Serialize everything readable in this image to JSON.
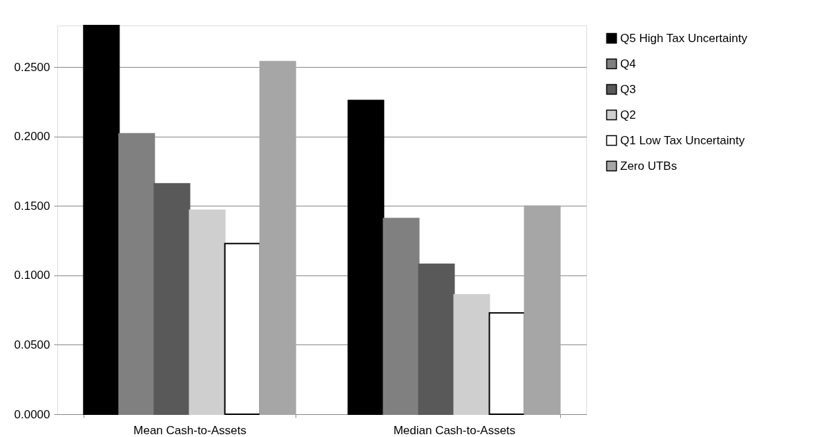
{
  "chart_data": {
    "type": "bar",
    "categories": [
      "Mean Cash-to-Assets",
      "Median Cash-to-Assets"
    ],
    "series": [
      {
        "name": "Q5 High Tax Uncertainty",
        "color": "#000000",
        "values": [
          0.28,
          0.226
        ]
      },
      {
        "name": "Q4",
        "color": "#808080",
        "values": [
          0.202,
          0.141
        ]
      },
      {
        "name": "Q3",
        "color": "#595959",
        "values": [
          0.166,
          0.108
        ]
      },
      {
        "name": "Q2",
        "color": "#d0cfd0",
        "values": [
          0.147,
          0.086
        ]
      },
      {
        "name": "Q1 Low Tax Uncertainty",
        "color": "#ffffff",
        "values": [
          0.123,
          0.073
        ]
      },
      {
        "name": "Zero UTBs",
        "color": "#a6a6a6",
        "values": [
          0.254,
          0.15
        ]
      }
    ],
    "ylim": [
      0,
      0.28
    ],
    "yticks": [
      {
        "value": 0,
        "label": "0.0000"
      },
      {
        "value": 0.05,
        "label": "0.0500"
      },
      {
        "value": 0.1,
        "label": "0.1000"
      },
      {
        "value": 0.15,
        "label": "0.1500"
      },
      {
        "value": 0.2,
        "label": "0.2000"
      },
      {
        "value": 0.25,
        "label": "0.2500"
      }
    ],
    "grid": "y",
    "legend": "right"
  }
}
